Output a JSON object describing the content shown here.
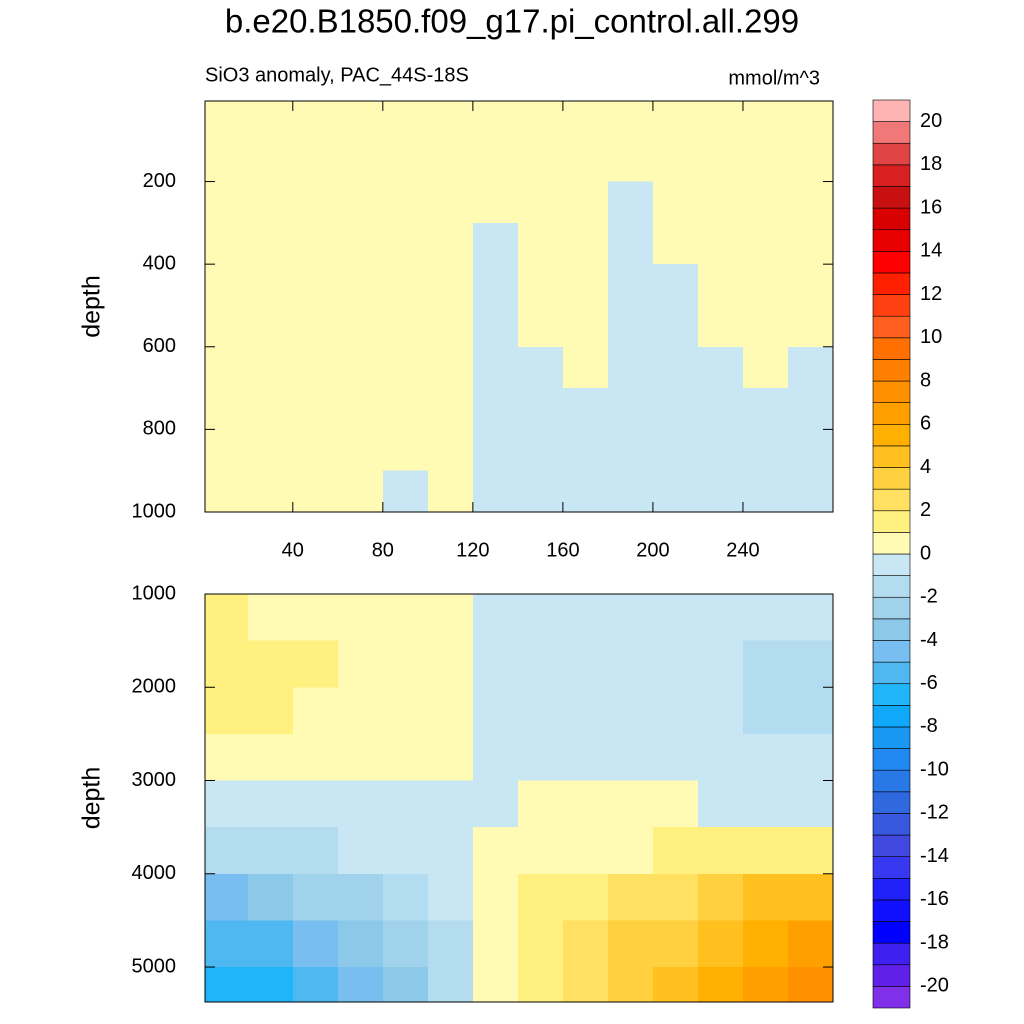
{
  "chart_data": [
    {
      "type": "contour",
      "title": "b.e20.B1850.f09_g17.pi_control.all.299",
      "subtitle": "SiO3 anomaly, PAC_44S-18S",
      "units": "mmol/m^3",
      "y_label": "depth",
      "x": [
        10,
        30,
        50,
        70,
        90,
        110,
        130,
        150,
        170,
        190,
        210,
        230,
        250,
        270
      ],
      "y": [
        50,
        150,
        250,
        350,
        450,
        550,
        650,
        750,
        850,
        950
      ],
      "z": [
        [
          0.4,
          0.4,
          0.4,
          0.4,
          0.4,
          0.4,
          0.4,
          0.4,
          0.4,
          0.4,
          0.4,
          0.4,
          0.4,
          0.4
        ],
        [
          0.4,
          0.4,
          0.4,
          0.4,
          0.4,
          0.4,
          0.4,
          0.4,
          0.4,
          0.4,
          0.4,
          0.4,
          0.4,
          0.4
        ],
        [
          0.4,
          0.4,
          0.4,
          0.4,
          0.4,
          0.4,
          0.4,
          0.4,
          0.4,
          -0.4,
          0.4,
          0.4,
          0.4,
          0.4
        ],
        [
          0.4,
          0.4,
          0.4,
          0.4,
          0.4,
          0.4,
          -0.4,
          0.4,
          0.4,
          -0.4,
          0.4,
          0.4,
          0.4,
          0.4
        ],
        [
          0.4,
          0.4,
          0.4,
          0.4,
          0.4,
          0.4,
          -0.4,
          0.4,
          0.4,
          -0.4,
          -0.4,
          0.4,
          0.4,
          0.4
        ],
        [
          0.4,
          0.4,
          0.4,
          0.4,
          0.4,
          0.4,
          -0.4,
          0.4,
          0.4,
          -0.4,
          -0.4,
          0.4,
          0.4,
          0.4
        ],
        [
          0.4,
          0.4,
          0.4,
          0.4,
          0.4,
          0.4,
          -0.4,
          -0.4,
          0.4,
          -0.4,
          -0.4,
          -0.4,
          0.4,
          -0.4
        ],
        [
          0.4,
          0.4,
          0.4,
          0.4,
          0.4,
          0.4,
          -0.4,
          -0.4,
          -0.4,
          -0.4,
          -0.4,
          -0.4,
          -0.4,
          -0.4
        ],
        [
          0.4,
          0.4,
          0.4,
          0.4,
          0.4,
          0.4,
          -0.4,
          -0.4,
          -0.4,
          -0.4,
          -0.4,
          -0.4,
          -0.4,
          -0.4
        ],
        [
          0.4,
          0.4,
          0.4,
          0.4,
          -0.4,
          0.4,
          -0.4,
          -0.4,
          -0.4,
          -0.4,
          -0.4,
          -0.4,
          -0.4,
          -0.4
        ]
      ],
      "xlim": [
        1,
        280
      ],
      "ylim": [
        5,
        1000
      ],
      "xticks": [
        40,
        80,
        120,
        160,
        200,
        240
      ],
      "yticks": [
        200,
        400,
        600,
        800,
        1000
      ],
      "levels": [
        -20,
        -19,
        -18,
        -17,
        -16,
        -15,
        -14,
        -13,
        -12,
        -11,
        -10,
        -9,
        -8,
        -7,
        -6,
        -5,
        -4,
        -3,
        -2,
        -1,
        0,
        1,
        2,
        3,
        4,
        5,
        6,
        7,
        8,
        9,
        10,
        11,
        12,
        13,
        14,
        15,
        16,
        17,
        18,
        19,
        20
      ],
      "colors": [
        "#8030e8",
        "#6020e8",
        "#4020f0",
        "#0000ff",
        "#1010ff",
        "#2020f8",
        "#3838f0",
        "#4048e0",
        "#3858e0",
        "#3068e0",
        "#2878e8",
        "#2088f0",
        "#1898f0",
        "#10a8f8",
        "#20b4f8",
        "#50b8f0",
        "#78bef0",
        "#8cc8e8",
        "#a0d2ec",
        "#b4dcf0",
        "#c8e6f4",
        "#fffab4",
        "#fff080",
        "#ffe060",
        "#ffd040",
        "#ffc020",
        "#ffb000",
        "#ffa000",
        "#ff9000",
        "#ff8000",
        "#ff7000",
        "#ff6020",
        "#ff4010",
        "#ff2000",
        "#ff0000",
        "#e80000",
        "#d80000",
        "#c81010",
        "#d82020",
        "#e04444",
        "#f07878",
        "#ffb4b4"
      ],
      "colorbar_ticks": [
        -20,
        -18,
        -16,
        -14,
        -12,
        -10,
        -8,
        -6,
        -4,
        -2,
        0,
        2,
        4,
        6,
        8,
        10,
        12,
        14,
        16,
        18,
        20
      ]
    },
    {
      "type": "contour",
      "y_label": "depth",
      "x": [
        10,
        30,
        50,
        70,
        90,
        110,
        130,
        150,
        170,
        190,
        210,
        230,
        250,
        270
      ],
      "y": [
        1250,
        1750,
        2250,
        2750,
        3250,
        3750,
        4250,
        4750,
        5250
      ],
      "z": [
        [
          1.2,
          0.8,
          0.5,
          0.5,
          0.4,
          0.3,
          -0.5,
          -0.5,
          -0.5,
          -0.5,
          -0.5,
          -0.6,
          -1.0,
          -0.8
        ],
        [
          1.3,
          1.2,
          1.1,
          0.6,
          0.5,
          0.4,
          -0.5,
          -0.5,
          -0.5,
          -0.5,
          -0.6,
          -0.8,
          -1.4,
          -1.5
        ],
        [
          1.2,
          1.1,
          0.8,
          0.6,
          0.5,
          0.4,
          -0.5,
          -0.5,
          -0.5,
          -0.5,
          -0.6,
          -0.8,
          -1.3,
          -1.4
        ],
        [
          0.6,
          0.6,
          0.5,
          0.5,
          0.5,
          0.4,
          -0.4,
          -0.4,
          -0.4,
          -0.4,
          -0.5,
          -0.6,
          -0.8,
          -0.9
        ],
        [
          -0.4,
          -0.4,
          -0.4,
          -0.3,
          -0.3,
          -0.3,
          -0.2,
          0.2,
          0.2,
          0.2,
          0.1,
          -0.1,
          -0.2,
          -0.2
        ],
        [
          -1.8,
          -1.6,
          -1.3,
          -1.0,
          -0.8,
          -0.6,
          0.4,
          0.6,
          0.7,
          0.8,
          1.0,
          1.2,
          1.4,
          1.6
        ],
        [
          -4.2,
          -3.6,
          -3.0,
          -2.4,
          -1.8,
          -0.9,
          0.5,
          1.0,
          1.6,
          2.2,
          2.8,
          3.4,
          4.0,
          4.5
        ],
        [
          -5.8,
          -5.2,
          -4.4,
          -3.6,
          -2.6,
          -1.2,
          0.5,
          1.3,
          2.2,
          3.0,
          3.8,
          4.6,
          5.4,
          6.0
        ],
        [
          -7.0,
          -6.4,
          -5.6,
          -4.6,
          -3.4,
          -1.6,
          0.6,
          1.6,
          2.6,
          3.6,
          4.6,
          5.6,
          6.6,
          7.4
        ]
      ],
      "xlim": [
        1,
        280
      ],
      "ylim": [
        1000,
        5375
      ],
      "yticks": [
        1000,
        2000,
        3000,
        4000,
        5000
      ]
    }
  ]
}
